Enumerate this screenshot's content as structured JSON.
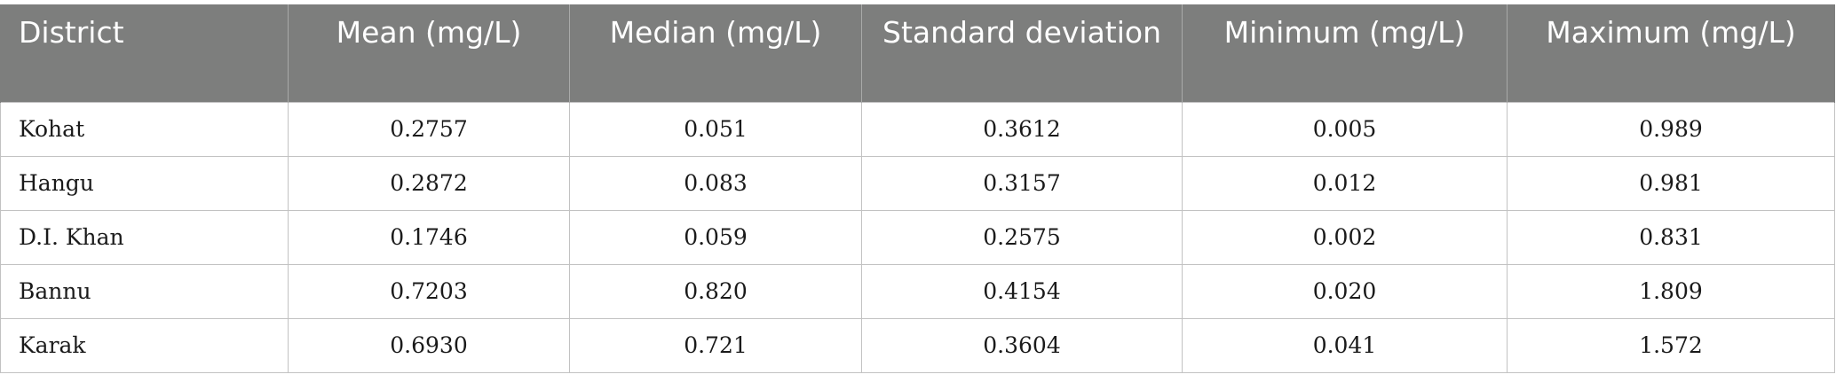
{
  "table": {
    "headers": [
      "District",
      "Mean (mg/L)",
      "Median (mg/L)",
      "Standard deviation",
      "Minimum (mg/L)",
      "Maximum (mg/L)"
    ],
    "rows": [
      [
        "Kohat",
        "0.2757",
        "0.051",
        "0.3612",
        "0.005",
        "0.989"
      ],
      [
        "Hangu",
        "0.2872",
        "0.083",
        "0.3157",
        "0.012",
        "0.981"
      ],
      [
        "D.I. Khan",
        "0.1746",
        "0.059",
        "0.2575",
        "0.002",
        "0.831"
      ],
      [
        "Bannu",
        "0.7203",
        "0.820",
        "0.4154",
        "0.020",
        "1.809"
      ],
      [
        "Karak",
        "0.6930",
        "0.721",
        "0.3604",
        "0.041",
        "1.572"
      ]
    ]
  },
  "colors": {
    "header_background": "#7d7e7d",
    "header_text": "#ffffff",
    "cell_border": "#c2c2c2",
    "cell_text": "#1a1a1a"
  }
}
